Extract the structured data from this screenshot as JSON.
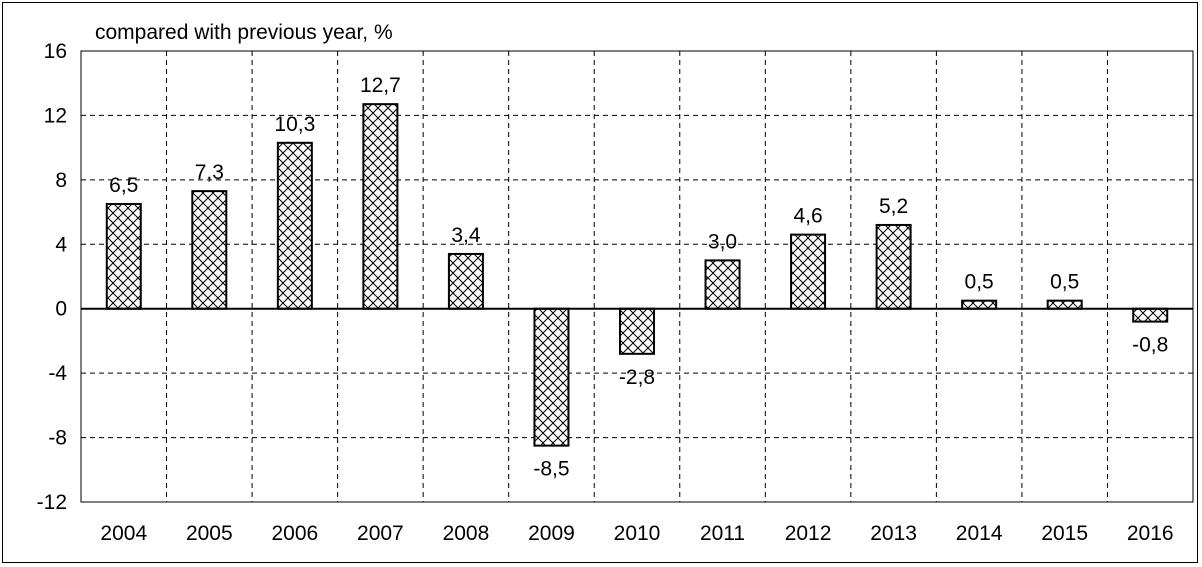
{
  "chart_data": {
    "type": "bar",
    "title": "",
    "unit_label": "compared with previous year, %",
    "xlabel": "",
    "ylabel": "",
    "categories": [
      "2004",
      "2005",
      "2006",
      "2007",
      "2008",
      "2009",
      "2010",
      "2011",
      "2012",
      "2013",
      "2014",
      "2015",
      "2016"
    ],
    "values": [
      6.5,
      7.3,
      10.3,
      12.7,
      3.4,
      -8.5,
      -2.8,
      3.0,
      4.6,
      5.2,
      0.5,
      0.5,
      -0.8
    ],
    "value_labels": [
      "6,5",
      "7,3",
      "10,3",
      "12,7",
      "3,4",
      "-8,5",
      "-2,8",
      "3,0",
      "4,6",
      "5,2",
      "0,5",
      "0,5",
      "-0,8"
    ],
    "ylim": [
      -12,
      16
    ],
    "yticks": [
      16,
      12,
      8,
      4,
      0,
      -4,
      -8,
      -12
    ],
    "grid": "dashed",
    "bar_fill": "crosshatch",
    "bar_color": "#ffffff",
    "edge_color": "#000000"
  }
}
